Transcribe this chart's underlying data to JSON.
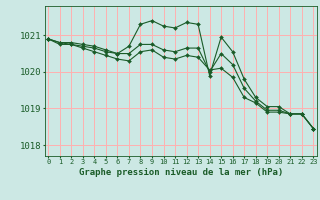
{
  "title": "Graphe pression niveau de la mer (hPa)",
  "bg_color": "#cce8e4",
  "grid_color": "#ffb0b0",
  "line_color": "#1a5c28",
  "marker_color": "#1a5c28",
  "ylim": [
    1017.7,
    1021.8
  ],
  "xlim": [
    -0.3,
    23.3
  ],
  "yticks": [
    1018,
    1019,
    1020,
    1021
  ],
  "xticks": [
    0,
    1,
    2,
    3,
    4,
    5,
    6,
    7,
    8,
    9,
    10,
    11,
    12,
    13,
    14,
    15,
    16,
    17,
    18,
    19,
    20,
    21,
    22,
    23
  ],
  "series": [
    [
      1020.9,
      1020.8,
      1020.8,
      1020.75,
      1020.7,
      1020.6,
      1020.5,
      1020.7,
      1021.3,
      1021.4,
      1021.25,
      1021.2,
      1021.35,
      1021.3,
      1019.9,
      1020.95,
      1020.55,
      1019.8,
      1019.3,
      1019.05,
      1019.05,
      1018.85,
      1018.85,
      1018.45
    ],
    [
      1020.9,
      1020.8,
      1020.75,
      1020.7,
      1020.65,
      1020.55,
      1020.5,
      1020.5,
      1020.75,
      1020.75,
      1020.6,
      1020.55,
      1020.65,
      1020.65,
      1020.0,
      1020.5,
      1020.2,
      1019.55,
      1019.2,
      1018.95,
      1018.95,
      1018.85,
      1018.85,
      1018.45
    ],
    [
      1020.9,
      1020.75,
      1020.75,
      1020.65,
      1020.55,
      1020.45,
      1020.35,
      1020.3,
      1020.55,
      1020.6,
      1020.4,
      1020.35,
      1020.45,
      1020.4,
      1020.05,
      1020.1,
      1019.85,
      1019.3,
      1019.15,
      1018.9,
      1018.9,
      1018.85,
      1018.85,
      1018.45
    ]
  ]
}
